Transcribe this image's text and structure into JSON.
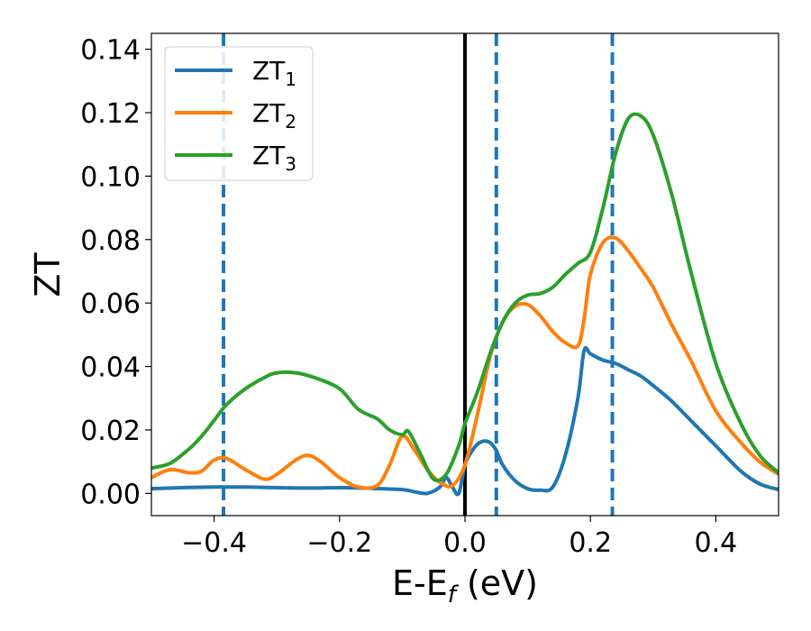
{
  "chart_data": {
    "type": "line",
    "xlabel": "E-E",
    "xlabel_sub": "f",
    "xlabel_unit": " (eV)",
    "ylabel": "ZT",
    "xlim": [
      -0.5,
      0.5
    ],
    "ylim": [
      -0.007,
      0.145
    ],
    "xticks": [
      -0.4,
      -0.2,
      0.0,
      0.2,
      0.4
    ],
    "xtick_labels": [
      "−0.4",
      "−0.2",
      "0.0",
      "0.2",
      "0.4"
    ],
    "yticks": [
      0.0,
      0.02,
      0.04,
      0.06,
      0.08,
      0.1,
      0.12,
      0.14
    ],
    "ytick_labels": [
      "0.00",
      "0.02",
      "0.04",
      "0.06",
      "0.08",
      "0.10",
      "0.12",
      "0.14"
    ],
    "legend_position": "top-left",
    "grid": false,
    "vertical_lines": [
      {
        "x": 0.0,
        "style": "solid",
        "color": "#000000"
      },
      {
        "x": -0.385,
        "style": "dashed",
        "color": "#1f77b4"
      },
      {
        "x": 0.05,
        "style": "dashed",
        "color": "#1f77b4"
      },
      {
        "x": 0.235,
        "style": "dashed",
        "color": "#1f77b4"
      }
    ],
    "series": [
      {
        "name": "ZT",
        "sub": "1",
        "color": "#1f77b4",
        "x": [
          -0.5,
          -0.45,
          -0.4,
          -0.35,
          -0.3,
          -0.25,
          -0.2,
          -0.15,
          -0.1,
          -0.08,
          -0.06,
          -0.04,
          -0.03,
          -0.02,
          -0.01,
          0.0,
          0.01,
          0.02,
          0.03,
          0.04,
          0.05,
          0.06,
          0.08,
          0.1,
          0.12,
          0.14,
          0.16,
          0.18,
          0.19,
          0.2,
          0.22,
          0.24,
          0.26,
          0.28,
          0.3,
          0.33,
          0.36,
          0.4,
          0.44,
          0.47,
          0.5
        ],
        "y": [
          0.0015,
          0.0018,
          0.002,
          0.002,
          0.0018,
          0.0017,
          0.0018,
          0.0016,
          0.0012,
          0.0005,
          0.0,
          0.002,
          0.005,
          0.002,
          0.0,
          0.009,
          0.013,
          0.0155,
          0.0165,
          0.016,
          0.0135,
          0.009,
          0.004,
          0.0015,
          0.001,
          0.002,
          0.012,
          0.03,
          0.045,
          0.044,
          0.042,
          0.041,
          0.039,
          0.037,
          0.034,
          0.029,
          0.023,
          0.015,
          0.007,
          0.003,
          0.0012
        ]
      },
      {
        "name": "ZT",
        "sub": "2",
        "color": "#ff7f0e",
        "x": [
          -0.5,
          -0.47,
          -0.44,
          -0.42,
          -0.4,
          -0.38,
          -0.35,
          -0.32,
          -0.3,
          -0.27,
          -0.25,
          -0.23,
          -0.2,
          -0.17,
          -0.14,
          -0.12,
          -0.1,
          -0.08,
          -0.06,
          -0.04,
          -0.02,
          0.0,
          0.02,
          0.04,
          0.06,
          0.08,
          0.1,
          0.12,
          0.14,
          0.16,
          0.18,
          0.19,
          0.2,
          0.22,
          0.24,
          0.26,
          0.28,
          0.3,
          0.33,
          0.36,
          0.4,
          0.44,
          0.47,
          0.5
        ],
        "y": [
          0.005,
          0.0075,
          0.0065,
          0.007,
          0.0105,
          0.011,
          0.0075,
          0.0045,
          0.006,
          0.0105,
          0.012,
          0.01,
          0.005,
          0.002,
          0.0025,
          0.009,
          0.018,
          0.0135,
          0.0075,
          0.0035,
          0.0025,
          0.009,
          0.025,
          0.043,
          0.054,
          0.059,
          0.0595,
          0.056,
          0.051,
          0.0475,
          0.0465,
          0.055,
          0.069,
          0.079,
          0.0805,
          0.0765,
          0.071,
          0.065,
          0.053,
          0.042,
          0.026,
          0.016,
          0.01,
          0.006
        ]
      },
      {
        "name": "ZT",
        "sub": "3",
        "color": "#2ca02c",
        "x": [
          -0.5,
          -0.47,
          -0.44,
          -0.42,
          -0.4,
          -0.38,
          -0.35,
          -0.32,
          -0.3,
          -0.27,
          -0.24,
          -0.2,
          -0.17,
          -0.14,
          -0.12,
          -0.1,
          -0.09,
          -0.07,
          -0.05,
          -0.03,
          -0.01,
          0.0,
          0.02,
          0.04,
          0.06,
          0.08,
          0.1,
          0.12,
          0.14,
          0.16,
          0.18,
          0.2,
          0.22,
          0.24,
          0.26,
          0.28,
          0.3,
          0.33,
          0.36,
          0.4,
          0.44,
          0.47,
          0.5
        ],
        "y": [
          0.008,
          0.0095,
          0.014,
          0.018,
          0.023,
          0.028,
          0.033,
          0.0365,
          0.038,
          0.038,
          0.0365,
          0.033,
          0.0265,
          0.0235,
          0.02,
          0.0185,
          0.0195,
          0.012,
          0.0045,
          0.006,
          0.015,
          0.022,
          0.032,
          0.044,
          0.054,
          0.06,
          0.0625,
          0.063,
          0.065,
          0.069,
          0.0725,
          0.076,
          0.09,
          0.107,
          0.118,
          0.119,
          0.113,
          0.094,
          0.07,
          0.041,
          0.022,
          0.012,
          0.0065
        ]
      }
    ]
  }
}
